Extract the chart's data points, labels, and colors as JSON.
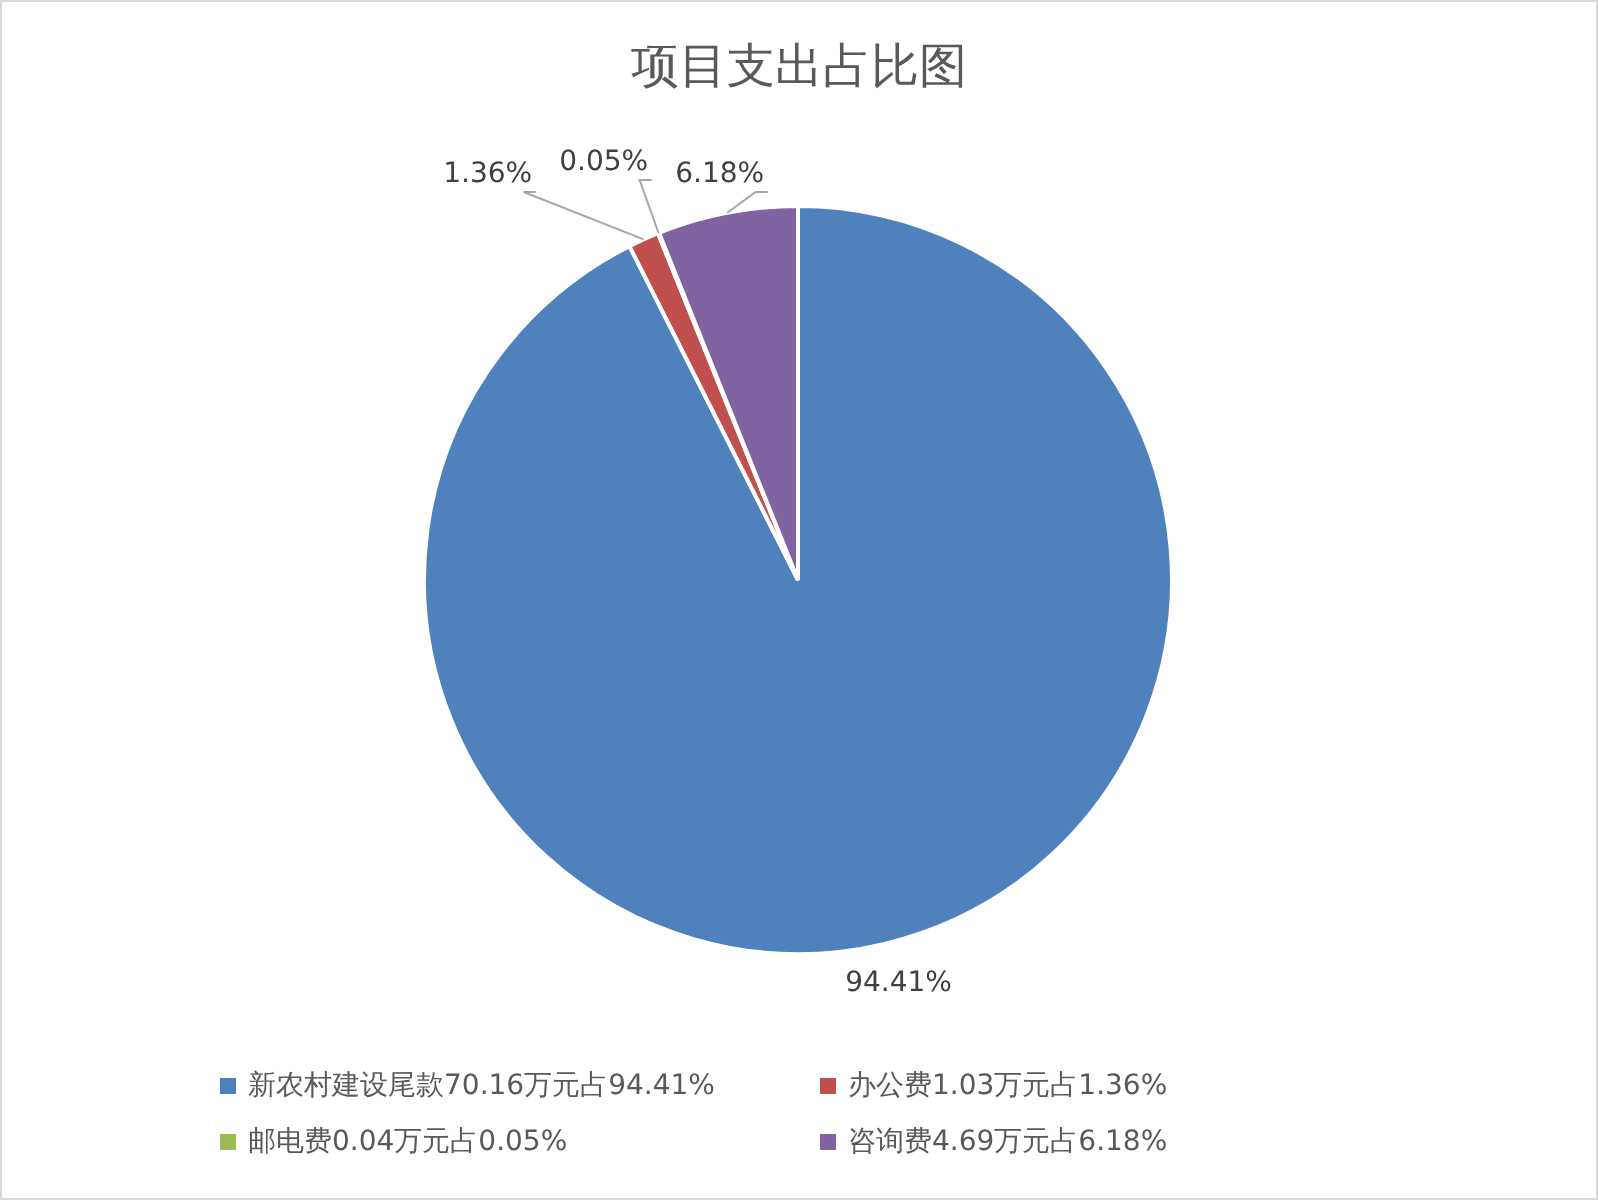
{
  "chart_data": {
    "type": "pie",
    "title": "项目支出占比图",
    "categories": [
      "新农村建设尾款70.16万元占94.41%",
      "办公费1.03万元占1.36%",
      "邮电费0.04万元占0.05%",
      "咨询费4.69万元占6.18%"
    ],
    "values": [
      94.41,
      1.36,
      0.05,
      6.18
    ],
    "colors": [
      "#4f81bd",
      "#c0504d",
      "#9bbb59",
      "#8064a2"
    ],
    "value_labels": [
      "94.41%",
      "1.36%",
      "0.05%",
      "6.18%"
    ],
    "legend": "bottom"
  }
}
